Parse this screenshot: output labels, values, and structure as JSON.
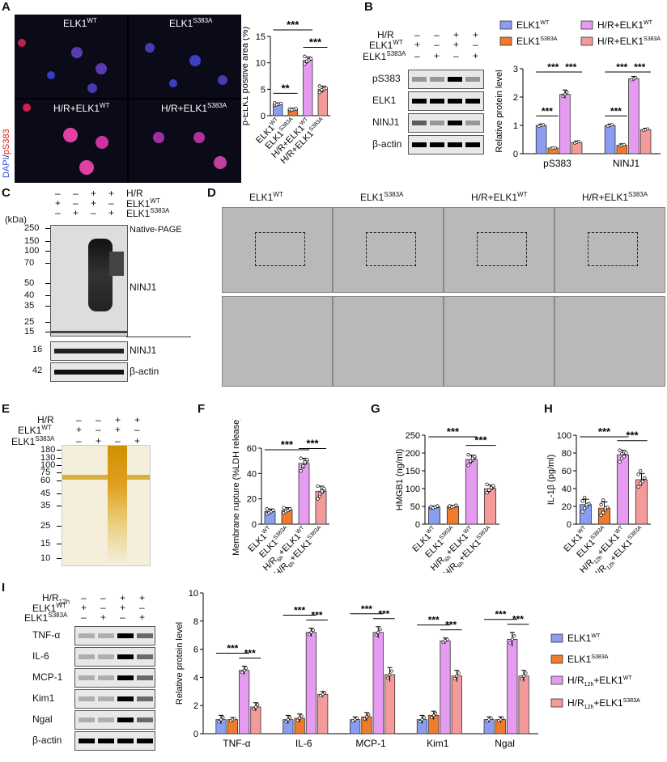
{
  "panels": {
    "A": "A",
    "B": "B",
    "C": "C",
    "D": "D",
    "E": "E",
    "F": "F",
    "G": "G",
    "H": "H",
    "I": "I"
  },
  "A": {
    "side_label_dapi": "DAPI",
    "side_label_sep": "/",
    "side_label_ps383": "pS383",
    "tiles": [
      {
        "base": "ELK1",
        "sup": "WT"
      },
      {
        "base": "ELK1",
        "sup": "S383A"
      },
      {
        "base": "H/R+ELK1",
        "sup": "WT"
      },
      {
        "base": "H/R+ELK1",
        "sup": "S383A"
      }
    ]
  },
  "B": {
    "conditions": [
      {
        "label": "H/R",
        "marks": [
          "–",
          "–",
          "+",
          "+"
        ]
      },
      {
        "label": "ELK1",
        "sup": "WT",
        "marks": [
          "+",
          "–",
          "+",
          "–"
        ]
      },
      {
        "label": "ELK1",
        "sup": "S383A",
        "marks": [
          "–",
          "+",
          "–",
          "+"
        ]
      }
    ],
    "bands": [
      "pS383",
      "ELK1",
      "NINJ1",
      "β-actin"
    ]
  },
  "C": {
    "conditions": [
      {
        "label": "H/R",
        "marks": [
          "–",
          "–",
          "+",
          "+"
        ]
      },
      {
        "label": "ELK1",
        "sup": "WT",
        "marks": [
          "+",
          "–",
          "+",
          "–"
        ]
      },
      {
        "label": "ELK1",
        "sup": "S383A",
        "marks": [
          "–",
          "+",
          "–",
          "+"
        ]
      }
    ],
    "kda": "(kDa)",
    "markers": [
      "250",
      "150",
      "100",
      "70",
      "50",
      "40",
      "35",
      "25",
      "15"
    ],
    "native_page": "Native-PAGE",
    "ninj1": "NINJ1",
    "lower_bands": [
      {
        "kda": "16",
        "label": "NINJ1"
      },
      {
        "kda": "42",
        "label": "β-actin"
      }
    ]
  },
  "D": {
    "columns": [
      {
        "base": "ELK1",
        "sup": "WT"
      },
      {
        "base": "ELK1",
        "sup": "S383A"
      },
      {
        "base": "H/R+ELK1",
        "sup": "WT"
      },
      {
        "base": "H/R+ELK1",
        "sup": "S383A"
      }
    ]
  },
  "E": {
    "conditions": [
      {
        "label": "H/R",
        "marks": [
          "–",
          "–",
          "+",
          "+"
        ]
      },
      {
        "label": "ELK1",
        "sup": "WT",
        "marks": [
          "+",
          "–",
          "+",
          "–"
        ]
      },
      {
        "label": "ELK1",
        "sup": "S383A",
        "marks": [
          "–",
          "+",
          "–",
          "+"
        ]
      }
    ],
    "markers": [
      "180",
      "130",
      "100",
      "75",
      "60",
      "45",
      "35",
      "25",
      "15",
      "10"
    ]
  },
  "I": {
    "conditions": [
      {
        "label": "H/R",
        "sub": "12h",
        "marks": [
          "–",
          "–",
          "+",
          "+"
        ]
      },
      {
        "label": "ELK1",
        "sup": "WT",
        "marks": [
          "+",
          "–",
          "+",
          "–"
        ]
      },
      {
        "label": "ELK1",
        "sup": "S383A",
        "marks": [
          "–",
          "+",
          "–",
          "+"
        ]
      }
    ],
    "bands": [
      "TNF-α",
      "IL-6",
      "MCP-1",
      "Kim1",
      "Ngal",
      "β-actin"
    ]
  },
  "colors": {
    "wt": "#8b9df0",
    "s383a": "#f07a2e",
    "hr_wt": "#e49bf0",
    "hr_s383a": "#f59a9a"
  },
  "chart_data": [
    {
      "id": "A",
      "type": "bar",
      "ylabel": "p-ELK1 positive area (%)",
      "ylim": [
        0,
        15
      ],
      "yticks": [
        0,
        5,
        10,
        15
      ],
      "categories": [
        {
          "base": "ELK1",
          "sup": "WT"
        },
        {
          "base": "ELK1",
          "sup": "S383A"
        },
        {
          "base": "H/R+ELK1",
          "sup": "WT"
        },
        {
          "base": "H/R+ELK1",
          "sup": "S383A"
        }
      ],
      "values": [
        2.2,
        1.2,
        10.5,
        5.0
      ],
      "errors": [
        0.2,
        0.2,
        0.6,
        0.6
      ],
      "points": [
        [
          2.0,
          2.1,
          2.2,
          2.3,
          2.4,
          2.1
        ],
        [
          1.0,
          1.1,
          1.2,
          1.3,
          1.2,
          1.1
        ],
        [
          9.8,
          10.2,
          10.5,
          10.8,
          11.2,
          10.3
        ],
        [
          4.4,
          4.8,
          5.0,
          5.2,
          5.6,
          4.9
        ]
      ],
      "sig": [
        {
          "from": 0,
          "to": 1,
          "label": "**"
        },
        {
          "from": 0,
          "to": 2,
          "label": "***"
        },
        {
          "from": 2,
          "to": 3,
          "label": "***"
        }
      ]
    },
    {
      "id": "B",
      "type": "bar",
      "ylabel": "Relative protein level",
      "ylim": [
        0,
        3
      ],
      "yticks": [
        0,
        1,
        2,
        3
      ],
      "groups": [
        "pS383",
        "NINJ1"
      ],
      "legend": [
        {
          "base": "ELK1",
          "sup": "WT"
        },
        {
          "base": "ELK1",
          "sup": "S383A"
        },
        {
          "base": "H/R+ELK1",
          "sup": "WT"
        },
        {
          "base": "H/R+ELK1",
          "sup": "S383A"
        }
      ],
      "series": [
        {
          "values": [
            1.0,
            1.0
          ],
          "errors": [
            0.05,
            0.05
          ]
        },
        {
          "values": [
            0.2,
            0.3
          ],
          "errors": [
            0.03,
            0.05
          ]
        },
        {
          "values": [
            2.1,
            2.65
          ],
          "errors": [
            0.15,
            0.08
          ]
        },
        {
          "values": [
            0.4,
            0.85
          ],
          "errors": [
            0.05,
            0.05
          ]
        }
      ],
      "sig": [
        {
          "group": 0,
          "from": 0,
          "to": 1,
          "label": "***"
        },
        {
          "group": 0,
          "from": 0,
          "to": 2,
          "label": "***",
          "level": 2
        },
        {
          "group": 0,
          "from": 2,
          "to": 3,
          "label": "***",
          "level": 2
        },
        {
          "group": 1,
          "from": 0,
          "to": 1,
          "label": "***"
        },
        {
          "group": 1,
          "from": 0,
          "to": 2,
          "label": "***",
          "level": 2
        },
        {
          "group": 1,
          "from": 2,
          "to": 3,
          "label": "***",
          "level": 2
        }
      ]
    },
    {
      "id": "F",
      "type": "bar",
      "ylabel": "Membrane rupture (%LDH release)",
      "ylim": [
        0,
        60
      ],
      "yticks": [
        0,
        20,
        40,
        60
      ],
      "categories": [
        {
          "base": "ELK1",
          "sup": "WT"
        },
        {
          "base": "ELK1",
          "sup": "S383A"
        },
        {
          "base": "H/R",
          "sub": "6h",
          "tail": "+ELK1",
          "sup": "WT"
        },
        {
          "base": "H/R",
          "sub": "6h",
          "tail": "+ELK1",
          "sup": "S383A"
        }
      ],
      "values": [
        10,
        11,
        48,
        26
      ],
      "errors": [
        2,
        2,
        4,
        4
      ],
      "points": [
        [
          8,
          9,
          10,
          11,
          12,
          9,
          10,
          11
        ],
        [
          9,
          10,
          11,
          12,
          13,
          10,
          11,
          12
        ],
        [
          42,
          45,
          48,
          50,
          52,
          46,
          49,
          51
        ],
        [
          20,
          22,
          25,
          27,
          30,
          24,
          26,
          28
        ]
      ],
      "sig": [
        {
          "from": 0,
          "to": 2,
          "label": "***"
        },
        {
          "from": 2,
          "to": 3,
          "label": "***"
        }
      ]
    },
    {
      "id": "G",
      "type": "bar",
      "ylabel": "HMGB1 (ng/ml)",
      "ylim": [
        0,
        250
      ],
      "yticks": [
        0,
        50,
        100,
        150,
        200,
        250
      ],
      "categories": [
        {
          "base": "ELK1",
          "sup": "WT"
        },
        {
          "base": "ELK1",
          "sup": "S383A"
        },
        {
          "base": "H/R",
          "sub": "6h",
          "tail": "+ELK1",
          "sup": "WT"
        },
        {
          "base": "H/R",
          "sub": "6h",
          "tail": "+ELK1",
          "sup": "S383A"
        }
      ],
      "values": [
        48,
        50,
        182,
        100
      ],
      "errors": [
        3,
        3,
        12,
        10
      ],
      "points": [
        [
          45,
          47,
          48,
          50,
          49,
          46,
          48,
          51
        ],
        [
          47,
          49,
          50,
          52,
          51,
          48,
          50,
          53
        ],
        [
          165,
          175,
          180,
          188,
          195,
          178,
          185,
          190
        ],
        [
          88,
          95,
          100,
          105,
          112,
          96,
          102,
          108
        ]
      ],
      "sig": [
        {
          "from": 0,
          "to": 2,
          "label": "***"
        },
        {
          "from": 2,
          "to": 3,
          "label": "***"
        }
      ]
    },
    {
      "id": "H",
      "type": "bar",
      "ylabel": "IL-1β (pg/ml)",
      "ylim": [
        0,
        100
      ],
      "yticks": [
        0,
        20,
        40,
        60,
        80,
        100
      ],
      "categories": [
        {
          "base": "ELK1",
          "sup": "WT"
        },
        {
          "base": "ELK1",
          "sup": "S383A"
        },
        {
          "base": "H/R",
          "sub": "12h",
          "tail": "+ELK1",
          "sup": "WT"
        },
        {
          "base": "H/R",
          "sub": "12h",
          "tail": "+ELK1",
          "sup": "S383A"
        }
      ],
      "values": [
        22,
        18,
        78,
        50
      ],
      "errors": [
        6,
        7,
        5,
        7
      ],
      "points": [
        [
          14,
          18,
          20,
          23,
          26,
          30,
          22
        ],
        [
          10,
          13,
          16,
          19,
          22,
          27,
          18
        ],
        [
          70,
          74,
          77,
          80,
          83,
          79,
          76
        ],
        [
          42,
          46,
          49,
          52,
          56,
          60,
          48
        ]
      ],
      "sig": [
        {
          "from": 0,
          "to": 2,
          "label": "***"
        },
        {
          "from": 2,
          "to": 3,
          "label": "***"
        }
      ]
    },
    {
      "id": "I",
      "type": "bar",
      "ylabel": "Relative protein level",
      "ylim": [
        0,
        10
      ],
      "yticks": [
        0,
        2,
        4,
        6,
        8,
        10
      ],
      "groups": [
        "TNF-α",
        "IL-6",
        "MCP-1",
        "Kim1",
        "Ngal"
      ],
      "legend": [
        {
          "base": "ELK1",
          "sup": "WT"
        },
        {
          "base": "ELK1",
          "sup": "S383A"
        },
        {
          "base": "H/R",
          "sub": "12h",
          "tail": "+ELK1",
          "sup": "WT"
        },
        {
          "base": "H/R",
          "sub": "12h",
          "tail": "+ELK1",
          "sup": "S383A"
        }
      ],
      "series": [
        {
          "values": [
            1.0,
            1.0,
            1.0,
            1.0,
            1.0
          ],
          "errors": [
            0.3,
            0.3,
            0.2,
            0.3,
            0.2
          ]
        },
        {
          "values": [
            1.0,
            1.1,
            1.2,
            1.3,
            1.0
          ],
          "errors": [
            0.15,
            0.3,
            0.3,
            0.3,
            0.2
          ]
        },
        {
          "values": [
            4.5,
            7.2,
            7.2,
            6.6,
            6.7
          ],
          "errors": [
            0.3,
            0.3,
            0.4,
            0.2,
            0.5
          ]
        },
        {
          "values": [
            1.9,
            2.8,
            4.2,
            4.1,
            4.1
          ],
          "errors": [
            0.3,
            0.2,
            0.5,
            0.4,
            0.4
          ]
        }
      ],
      "sig": [
        {
          "group": 0,
          "from": 0,
          "to": 2,
          "label": "***"
        },
        {
          "group": 0,
          "from": 2,
          "to": 3,
          "label": "***"
        },
        {
          "group": 1,
          "from": 0,
          "to": 2,
          "label": "***"
        },
        {
          "group": 1,
          "from": 2,
          "to": 3,
          "label": "***"
        },
        {
          "group": 2,
          "from": 0,
          "to": 2,
          "label": "***"
        },
        {
          "group": 2,
          "from": 2,
          "to": 3,
          "label": "***"
        },
        {
          "group": 3,
          "from": 0,
          "to": 2,
          "label": "***"
        },
        {
          "group": 3,
          "from": 2,
          "to": 3,
          "label": "***"
        },
        {
          "group": 4,
          "from": 0,
          "to": 2,
          "label": "***"
        },
        {
          "group": 4,
          "from": 2,
          "to": 3,
          "label": "***"
        }
      ]
    }
  ]
}
